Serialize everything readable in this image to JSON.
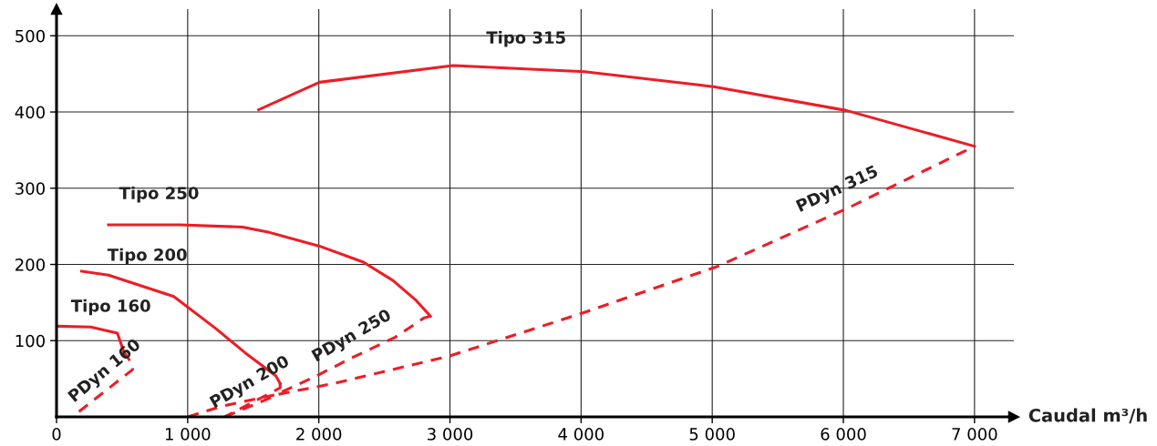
{
  "chart_data": {
    "type": "line",
    "xlabel": "Caudal m³/h",
    "xlim": [
      0,
      7300
    ],
    "ylim": [
      0,
      535
    ],
    "xticks": [
      0,
      {
        "value": 1000,
        "label": "1 000"
      },
      {
        "value": 2000,
        "label": "2 000"
      },
      {
        "value": 3000,
        "label": "3 000"
      },
      {
        "value": 4000,
        "label": "4 000"
      },
      {
        "value": 5000,
        "label": "5 000"
      },
      {
        "value": 6000,
        "label": "6 000"
      },
      {
        "value": 7000,
        "label": "7 000"
      }
    ],
    "yticks": [
      100,
      200,
      300,
      400,
      500
    ],
    "grid": true,
    "legend": false,
    "marker": "none",
    "series": [
      {
        "name": "Tipo 160",
        "color": "#ee1c25",
        "line_style": "solid",
        "x": [
          0,
          260,
          464,
          512
        ],
        "values": [
          119,
          118,
          110,
          86
        ]
      },
      {
        "name": "PDyn 160",
        "color": "#ee1c25",
        "line_style": "dashed",
        "x": [
          512,
          580,
          580,
          157
        ],
        "values": [
          86,
          68,
          62,
          5
        ]
      },
      {
        "name": "Tipo 200",
        "color": "#ee1c25",
        "line_style": "solid",
        "x": [
          191,
          396,
          894,
          1214,
          1439,
          1671,
          1705
        ],
        "values": [
          191,
          186,
          158,
          116,
          84,
          54,
          44
        ]
      },
      {
        "name": "PDyn 200",
        "color": "#ee1c25",
        "line_style": "dashed",
        "x": [
          1705,
          1705,
          1282
        ],
        "values": [
          44,
          38,
          0
        ]
      },
      {
        "name": "Tipo 250",
        "color": "#ee1c25",
        "line_style": "solid",
        "x": [
          396,
          941,
          1419,
          1623,
          2005,
          2340,
          2565,
          2735,
          2851
        ],
        "values": [
          252,
          252,
          249,
          242,
          224,
          203,
          179,
          154,
          132
        ]
      },
      {
        "name": "PDyn 250",
        "color": "#ee1c25",
        "line_style": "dashed",
        "x": [
          2851,
          2804,
          2578,
          2258,
          1985,
          1671,
          1262,
          1000
        ],
        "values": [
          132,
          130,
          104,
          78,
          54,
          29,
          14,
          0
        ]
      },
      {
        "name": "Tipo 315",
        "color": "#ee1c25",
        "line_style": "solid",
        "x": [
          1541,
          2005,
          3022,
          4025,
          5020,
          6023,
          7000
        ],
        "values": [
          403,
          439,
          461,
          453,
          433,
          402,
          355
        ]
      },
      {
        "name": "PDyn 315",
        "color": "#ee1c25",
        "line_style": "dashed",
        "x": [
          1282,
          1700,
          2121,
          3000,
          4025,
          5034,
          6023,
          7000
        ],
        "values": [
          0,
          30,
          44,
          80,
          137,
          197,
          273,
          355
        ]
      }
    ]
  }
}
